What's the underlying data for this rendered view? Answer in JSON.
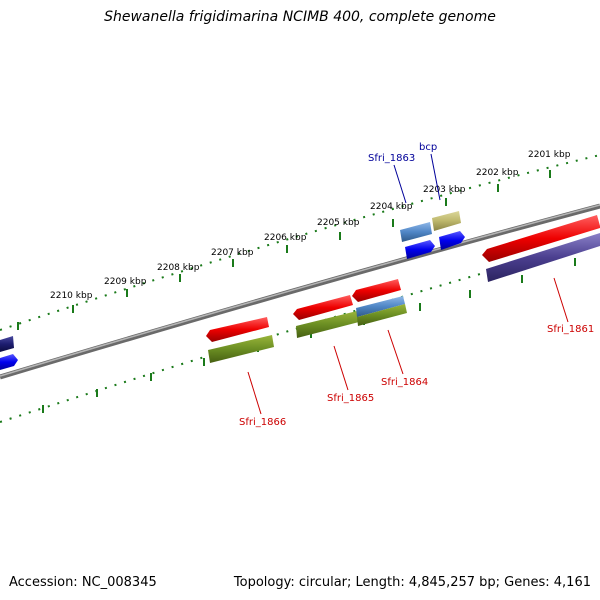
{
  "title": "Shewanella frigidimarina NCIMB 400, complete genome",
  "footer": {
    "accession": "Accession: NC_008345",
    "summary": "Topology: circular; Length: 4,845,257 bp; Genes: 4,161"
  },
  "kbp_labels": [
    "2201 kbp",
    "2202 kbp",
    "2203 kbp",
    "2204 kbp",
    "2205 kbp",
    "2206 kbp",
    "2207 kbp",
    "2208 kbp",
    "2209 kbp",
    "2210 kbp"
  ],
  "genes": [
    {
      "name": "Sfri_1861",
      "color": "#cc0000"
    },
    {
      "name": "Sfri_1863",
      "color": "#000099"
    },
    {
      "name": "bcp",
      "color": "#000099"
    },
    {
      "name": "Sfri_1864",
      "color": "#cc0000"
    },
    {
      "name": "Sfri_1865",
      "color": "#cc0000"
    },
    {
      "name": "Sfri_1866",
      "color": "#cc0000"
    }
  ],
  "colors": {
    "backbone": "#808080",
    "tick": "#1a7a1a",
    "gene_red": "#ee0000",
    "gene_blue": "#0000ee",
    "gene_navy": "#2a2a8a",
    "gene_green": "#6b8e23",
    "gene_steel": "#4f86c6",
    "gene_khaki": "#bdb76b",
    "gene_purple": "#4b3f8f"
  }
}
